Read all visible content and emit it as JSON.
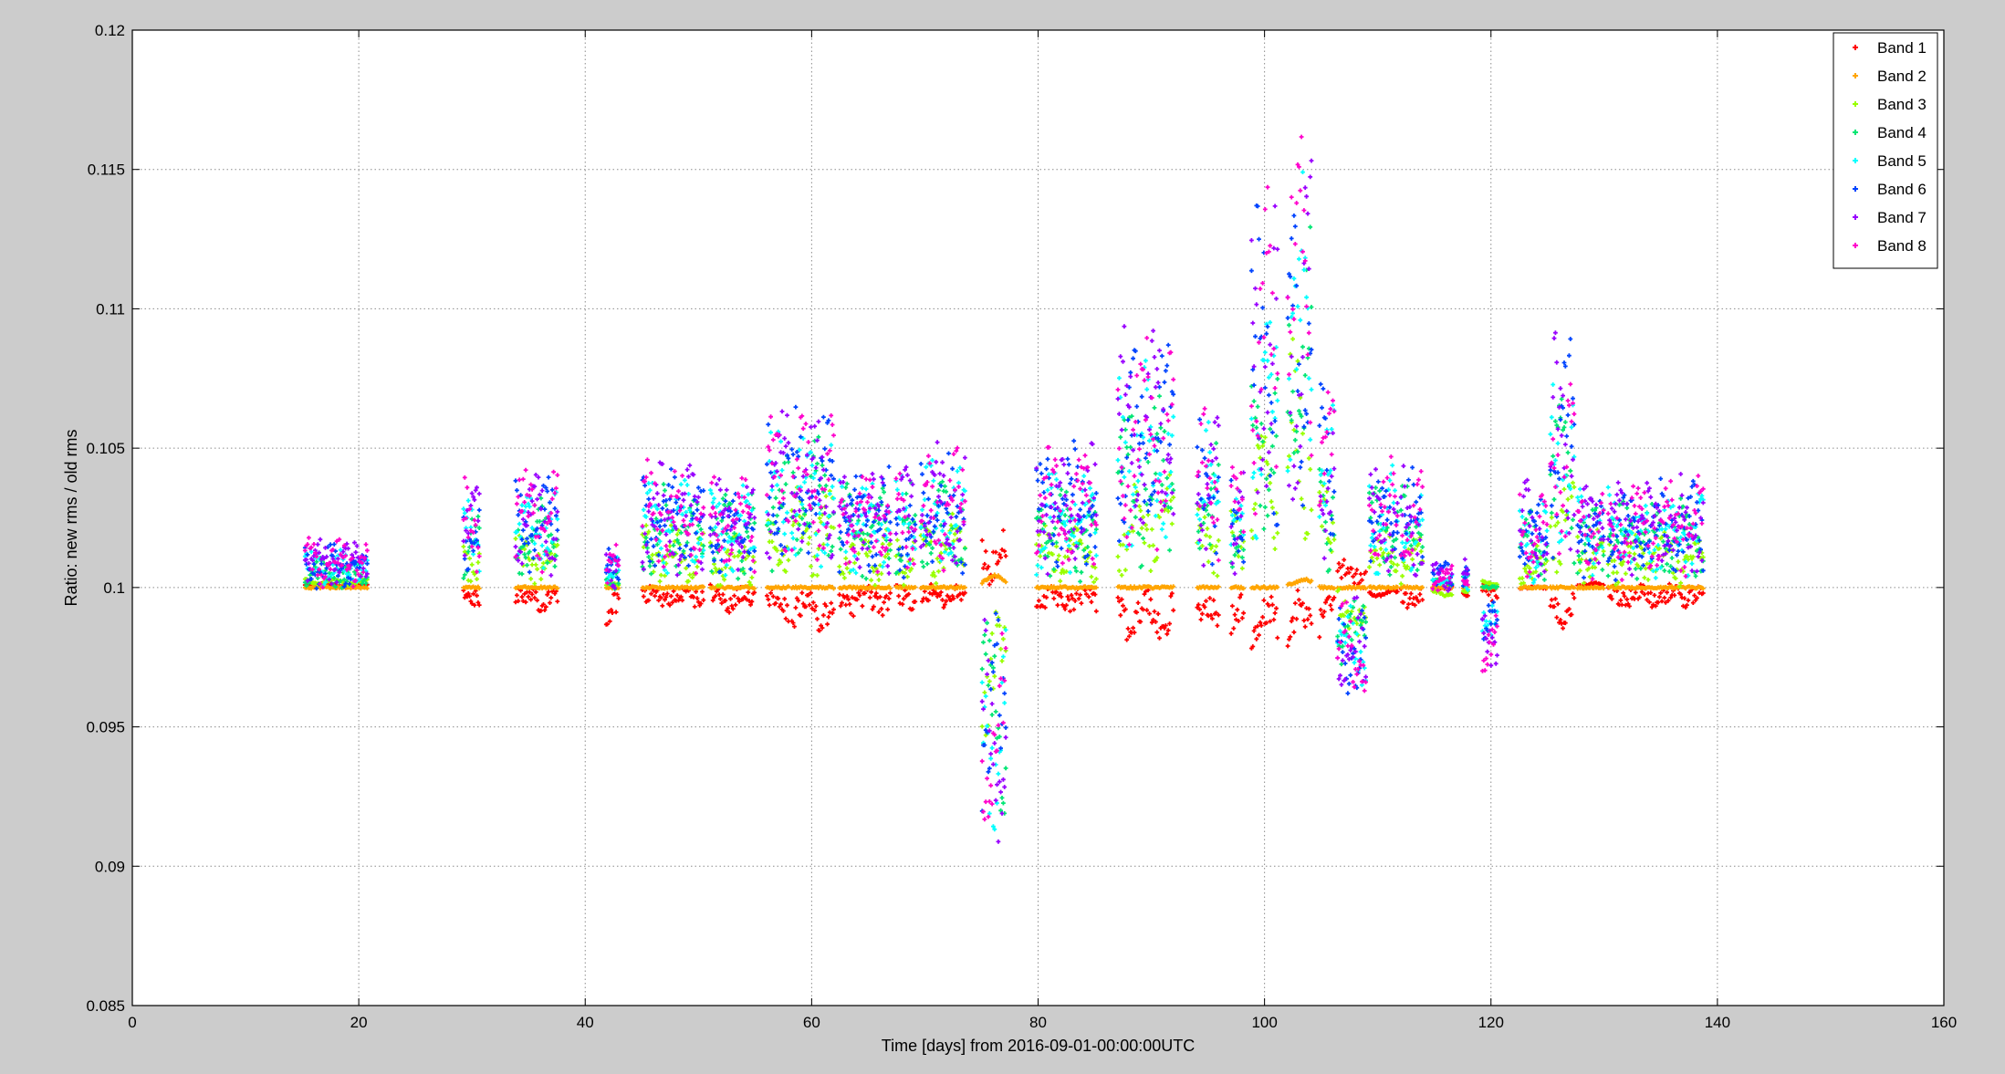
{
  "chart_data": {
    "type": "scatter",
    "title": "",
    "xlabel": "Time [days] from 2016-09-01-00:00:00UTC",
    "ylabel": "Ratio: new rms / old rms",
    "xlim": [
      0,
      160
    ],
    "ylim": [
      0.085,
      0.12
    ],
    "xticks": [
      0,
      20,
      40,
      60,
      80,
      100,
      120,
      140,
      160
    ],
    "xtick_labels": [
      "0",
      "20",
      "40",
      "60",
      "80",
      "100",
      "120",
      "140",
      "160"
    ],
    "yticks": [
      0.085,
      0.09,
      0.095,
      0.1,
      0.105,
      0.11,
      0.115,
      0.12
    ],
    "ytick_labels": [
      "0.085",
      "0.09",
      "0.095",
      "0.1",
      "0.105",
      "0.11",
      "0.115",
      "0.12"
    ],
    "grid": true,
    "legend_position": "top-right",
    "observation_segments": [
      [
        15.2,
        20.8
      ],
      [
        29.2,
        30.7
      ],
      [
        33.8,
        37.6
      ],
      [
        41.8,
        43.0
      ],
      [
        45.0,
        50.5
      ],
      [
        51.0,
        55.0
      ],
      [
        56.0,
        58.0
      ],
      [
        58.2,
        62.0
      ],
      [
        62.4,
        67.0
      ],
      [
        67.4,
        69.2
      ],
      [
        69.6,
        73.6
      ],
      [
        75.0,
        77.2
      ],
      [
        79.8,
        85.2
      ],
      [
        87.0,
        92.0
      ],
      [
        94.0,
        96.0
      ],
      [
        97.0,
        98.2
      ],
      [
        98.8,
        101.2
      ],
      [
        102.0,
        104.2
      ],
      [
        104.8,
        106.2
      ],
      [
        106.4,
        109.0
      ],
      [
        109.2,
        111.8
      ],
      [
        112.0,
        114.0
      ],
      [
        114.8,
        116.6
      ],
      [
        117.5,
        118.0
      ],
      [
        119.2,
        120.6
      ],
      [
        122.5,
        125.0
      ],
      [
        125.2,
        127.4
      ],
      [
        127.6,
        130.0
      ],
      [
        130.3,
        138.8
      ]
    ],
    "series": [
      {
        "name": "Band 1",
        "color": "#ff0000",
        "marker": "+",
        "values": [
          0.1001,
          0.0997,
          0.0996,
          0.0993,
          0.0997,
          0.0996,
          0.0994,
          0.0992,
          0.0995,
          0.0996,
          0.0997,
          0.1012,
          0.0996,
          0.099,
          0.099,
          0.0987,
          0.0988,
          0.0988,
          0.099,
          0.1005,
          0.0998,
          0.0997,
          0.1,
          0.0998,
          0.0997,
          0.1,
          0.0992,
          0.1001,
          0.0997
        ]
      },
      {
        "name": "Band 2",
        "color": "#ffa500",
        "marker": "+",
        "values": [
          0.1,
          0.1,
          0.1,
          0.1,
          0.1,
          0.1,
          0.1,
          0.1,
          0.1,
          0.1,
          0.1,
          0.1003,
          0.1,
          0.1,
          0.1,
          0.1,
          0.1,
          0.1002,
          0.1,
          0.1,
          0.1,
          0.1,
          0.1,
          0.1,
          0.1,
          0.1,
          0.1,
          0.1,
          0.1
        ]
      },
      {
        "name": "Band 3",
        "color": "#99ff00",
        "marker": "+",
        "values": [
          0.1002,
          0.1009,
          0.101,
          0.1001,
          0.1012,
          0.101,
          0.1016,
          0.1019,
          0.1012,
          0.1011,
          0.1014,
          0.097,
          0.1012,
          0.1022,
          0.1016,
          0.1015,
          0.1032,
          0.105,
          0.102,
          0.099,
          0.1012,
          0.101,
          0.0998,
          0.0998,
          0.1002,
          0.1008,
          0.1024,
          0.1012,
          0.101
        ]
      },
      {
        "name": "Band 4",
        "color": "#00e673",
        "marker": "+",
        "values": [
          0.1005,
          0.1015,
          0.1017,
          0.1004,
          0.102,
          0.1019,
          0.103,
          0.103,
          0.102,
          0.102,
          0.1022,
          0.0955,
          0.102,
          0.104,
          0.103,
          0.102,
          0.1055,
          0.1078,
          0.1035,
          0.0985,
          0.1022,
          0.102,
          0.1002,
          0.1003,
          0.1,
          0.1015,
          0.104,
          0.1018,
          0.1018
        ]
      },
      {
        "name": "Band 5",
        "color": "#00ffff",
        "marker": "+",
        "values": [
          0.1007,
          0.1018,
          0.102,
          0.1006,
          0.1022,
          0.102,
          0.1033,
          0.1033,
          0.1022,
          0.1022,
          0.1025,
          0.095,
          0.1025,
          0.1045,
          0.1032,
          0.1022,
          0.106,
          0.1085,
          0.1038,
          0.098,
          0.1024,
          0.1022,
          0.1003,
          0.1004,
          0.099,
          0.1018,
          0.1045,
          0.102,
          0.102
        ]
      },
      {
        "name": "Band 6",
        "color": "#0044ff",
        "marker": "+",
        "values": [
          0.1008,
          0.102,
          0.1022,
          0.1007,
          0.1024,
          0.1022,
          0.1035,
          0.1035,
          0.1024,
          0.1024,
          0.1027,
          0.0948,
          0.103,
          0.105,
          0.1034,
          0.1024,
          0.108,
          0.1092,
          0.104,
          0.0978,
          0.1025,
          0.1023,
          0.1004,
          0.1005,
          0.0985,
          0.102,
          0.105,
          0.1021,
          0.1021
        ]
      },
      {
        "name": "Band 7",
        "color": "#9900ff",
        "marker": "+",
        "values": [
          0.1009,
          0.1022,
          0.1024,
          0.1008,
          0.1025,
          0.1023,
          0.1036,
          0.1036,
          0.1025,
          0.1025,
          0.1028,
          0.0946,
          0.1028,
          0.1052,
          0.1035,
          0.1025,
          0.1083,
          0.1095,
          0.1041,
          0.0976,
          0.1026,
          0.1024,
          0.1004,
          0.1005,
          0.0983,
          0.1021,
          0.1052,
          0.1022,
          0.1022
        ]
      },
      {
        "name": "Band 8",
        "color": "#ff00cc",
        "marker": "+",
        "values": [
          0.1009,
          0.1022,
          0.1024,
          0.1008,
          0.1025,
          0.1023,
          0.1036,
          0.1036,
          0.1025,
          0.1025,
          0.1028,
          0.0946,
          0.1028,
          0.1052,
          0.1035,
          0.1025,
          0.1083,
          0.1095,
          0.1041,
          0.0976,
          0.1026,
          0.1024,
          0.1004,
          0.1005,
          0.0983,
          0.1021,
          0.1052,
          0.1022,
          0.1022
        ]
      }
    ]
  }
}
